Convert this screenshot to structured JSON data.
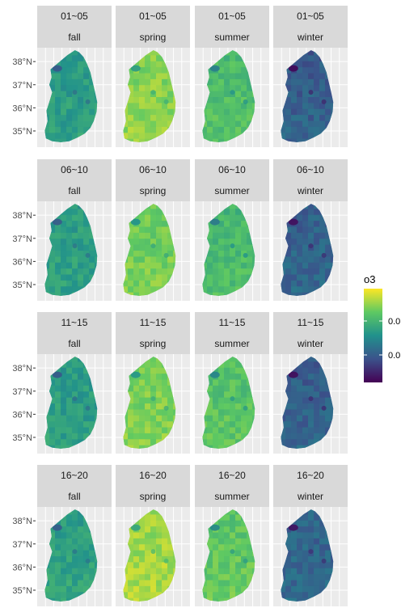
{
  "chart_data": {
    "type": "heatmap",
    "subtype": "faceted-map",
    "facet_rows": [
      "01~05",
      "06~10",
      "11~15",
      "16~20"
    ],
    "facet_cols": [
      "fall",
      "spring",
      "summer",
      "winter"
    ],
    "y_ticks": [
      "38°N",
      "37°N",
      "36°N",
      "35°N"
    ],
    "y_tick_values": [
      38,
      37,
      36,
      35
    ],
    "ylim": [
      34.3,
      38.6
    ],
    "grid": true,
    "legend": {
      "title": "o3",
      "placement": "right",
      "tick_labels": [
        "0.0",
        "0.0"
      ],
      "colormap": "viridis",
      "colors": [
        "#440154",
        "#3b528b",
        "#21918c",
        "#5ec962",
        "#fde725"
      ]
    },
    "panel_level": [
      [
        0.55,
        0.82,
        0.7,
        0.3
      ],
      [
        0.56,
        0.78,
        0.68,
        0.32
      ],
      [
        0.55,
        0.8,
        0.72,
        0.31
      ],
      [
        0.57,
        0.86,
        0.74,
        0.33
      ]
    ]
  }
}
